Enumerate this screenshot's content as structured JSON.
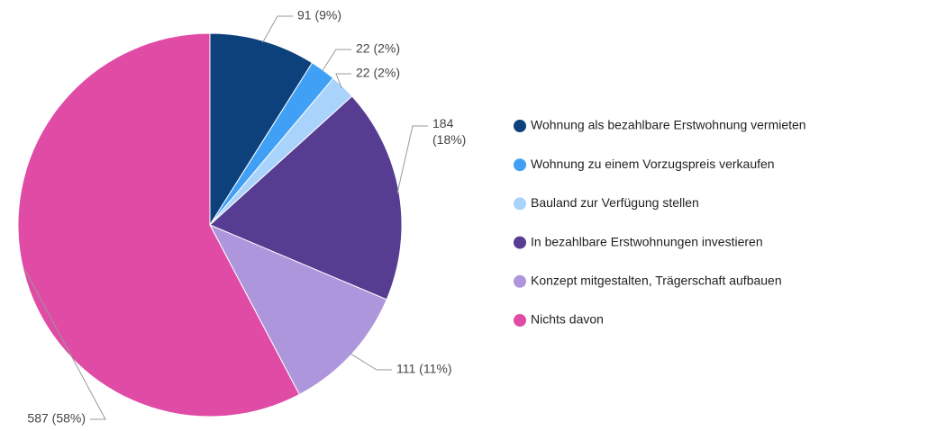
{
  "chart_data": {
    "type": "pie",
    "categories": [
      "Wohnung als bezahlbare Erstwohnung vermieten",
      "Wohnung zu einem Vorzugspreis verkaufen",
      "Bauland zur Verfügung stellen",
      "In bezahlbare Erstwohnungen investieren",
      "Konzept mitgestalten, Trägerschaft aufbauen",
      "Nichts davon"
    ],
    "values": [
      91,
      22,
      22,
      184,
      111,
      587
    ],
    "value_labels": [
      "91 (9%)",
      "22 (2%)",
      "22 (2%)",
      "184 (18%)",
      "111 (11%)",
      "587 (58%)"
    ],
    "colors": [
      "#0d417c",
      "#3fa0f5",
      "#a9d3fb",
      "#563d91",
      "#ae96dc",
      "#e04ba6"
    ],
    "legend": "right"
  }
}
